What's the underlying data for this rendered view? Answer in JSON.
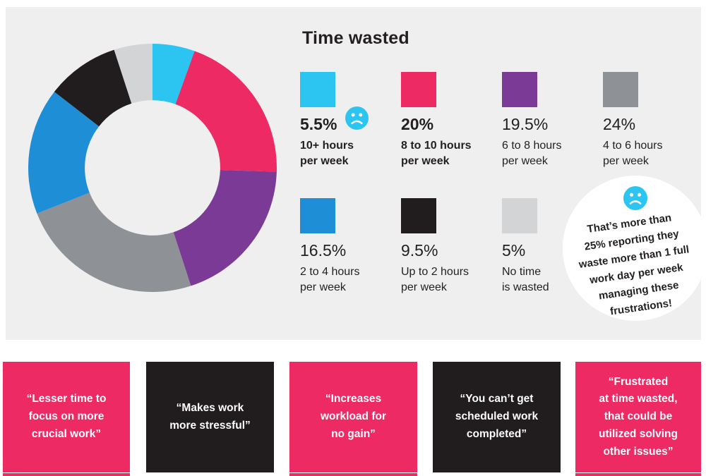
{
  "title": "Time wasted",
  "colors": {
    "panel_bg": "#EFEFEF",
    "text": "#231F20",
    "cyan": "#2CC5F1",
    "pink": "#EE2A64",
    "purple": "#7B3A96",
    "gray": "#8E9196",
    "blue": "#1E8ED6",
    "black": "#211C1D",
    "light_gray": "#D3D4D6",
    "white": "#FFFFFF"
  },
  "chart_data": {
    "type": "pie",
    "subtype": "donut",
    "title": "Time wasted",
    "start_angle_deg": -90,
    "direction": "clockwise",
    "inner_radius_ratio": 0.545,
    "categories": [
      "10+ hours per week",
      "8 to 10 hours per week",
      "6 to 8 hours per week",
      "4 to 6 hours per week",
      "2 to 4 hours per week",
      "Up to 2 hours per week",
      "No time is wasted"
    ],
    "values": [
      5.5,
      20,
      19.5,
      24,
      16.5,
      9.5,
      5
    ],
    "unit": "%",
    "colors": [
      "#2CC5F1",
      "#EE2A64",
      "#7B3A96",
      "#8E9196",
      "#1E8ED6",
      "#211C1D",
      "#D3D4D6"
    ],
    "legend_position": "right"
  },
  "legend": {
    "items": [
      {
        "pct": "5.5%",
        "label": "10+ hours\nper week",
        "color": "#2CC5F1",
        "bold": true,
        "sad_face": true
      },
      {
        "pct": "20%",
        "label": "8 to 10 hours\nper week",
        "color": "#EE2A64",
        "bold": true,
        "sad_face": false
      },
      {
        "pct": "19.5%",
        "label": "6 to 8 hours\nper week",
        "color": "#7B3A96",
        "bold": false,
        "sad_face": false
      },
      {
        "pct": "24%",
        "label": "4 to 6 hours\nper week",
        "color": "#8E9196",
        "bold": false,
        "sad_face": false
      },
      {
        "pct": "16.5%",
        "label": "2 to 4 hours\nper week",
        "color": "#1E8ED6",
        "bold": false,
        "sad_face": false
      },
      {
        "pct": "9.5%",
        "label": "Up to 2 hours\nper week",
        "color": "#211C1D",
        "bold": false,
        "sad_face": false
      },
      {
        "pct": "5%",
        "label": "No time\nis wasted",
        "color": "#D3D4D6",
        "bold": false,
        "sad_face": false
      }
    ]
  },
  "bubble": {
    "text": "That’s more than\n25% reporting they\nwaste more than 1 full\nwork day per week\nmanaging these\nfrustrations!",
    "face_color": "#2CC5F1"
  },
  "quotes": {
    "boxes": [
      {
        "text": "“Lesser time to\nfocus on more\ncrucial work”",
        "color": "#EE2A64"
      },
      {
        "text": "“Makes work\nmore stressful”",
        "color": "#211C1D"
      },
      {
        "text": "“Increases\nworkload for\nno gain”",
        "color": "#EE2A64"
      },
      {
        "text": "“You can’t get\nscheduled work\ncompleted”",
        "color": "#211C1D"
      },
      {
        "text": "“Frustrated\nat time wasted,\nthat could be\nutilized solving\nother issues”",
        "color": "#EE2A64"
      }
    ]
  }
}
